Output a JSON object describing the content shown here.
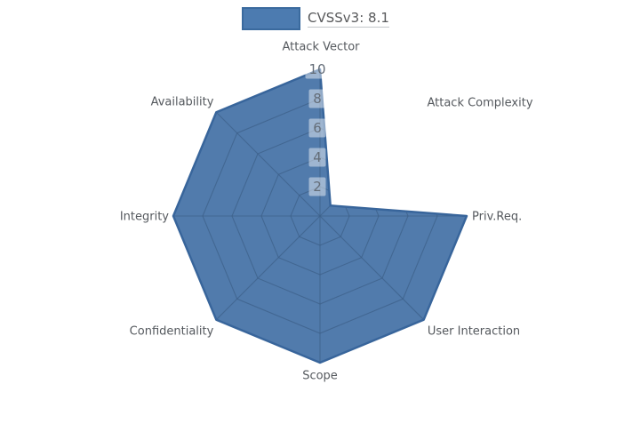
{
  "legend": {
    "label": "CVSSv3: 8.1"
  },
  "colors": {
    "series_fill": "#4b77a9",
    "series_stroke": "#38659b",
    "grid_line": "#3e6089",
    "tick_box_bg": "rgba(255,255,255,0.45)",
    "tick_text": "#646d78",
    "label_text": "#55595e"
  },
  "chart_data": {
    "type": "radar",
    "title": "",
    "legend_entries": [
      "CVSSv3: 8.1"
    ],
    "legend_position": "top",
    "categories": [
      "Attack Vector",
      "Attack Complexity",
      "Priv.Req.",
      "User Interaction",
      "Scope",
      "Confidentiality",
      "Integrity",
      "Availability"
    ],
    "series": [
      {
        "name": "CVSSv3: 8.1",
        "values": [
          10,
          1,
          10,
          10,
          10,
          10,
          10,
          10
        ]
      }
    ],
    "radial_axis": {
      "min": 0,
      "max": 10,
      "ticks": [
        2,
        4,
        6,
        8,
        10
      ]
    },
    "start_angle_deg": 90,
    "direction": "clockwise",
    "grid": "spider-web, visible only beneath the filled area",
    "tick_labels_have_background": true
  }
}
